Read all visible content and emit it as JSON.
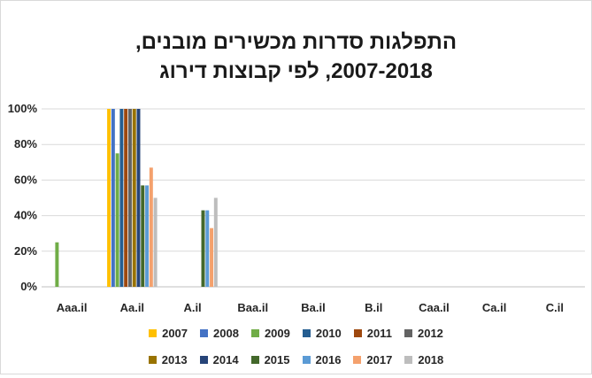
{
  "chart_data": {
    "type": "bar",
    "title_line1": "התפלגות סדרות מכשירים מובנים,",
    "title_line2": "2007-2018, לפי קבוצות דירוג",
    "categories": [
      "Aaa.il",
      "Aa.il",
      "A.il",
      "Baa.il",
      "Ba.il",
      "B.il",
      "Caa.il",
      "Ca.il",
      "C.il"
    ],
    "yticks": [
      "0%",
      "20%",
      "40%",
      "60%",
      "80%",
      "100%"
    ],
    "ylim": [
      0,
      1
    ],
    "grid": true,
    "legend_position": "bottom",
    "series": [
      {
        "name": "2007",
        "color": "#FFC000",
        "values": [
          0,
          1.0,
          0,
          0,
          0,
          0,
          0,
          0,
          0
        ]
      },
      {
        "name": "2008",
        "color": "#4472C4",
        "values": [
          0,
          1.0,
          0,
          0,
          0,
          0,
          0,
          0,
          0
        ]
      },
      {
        "name": "2009",
        "color": "#70AD47",
        "values": [
          0.25,
          0.75,
          0,
          0,
          0,
          0,
          0,
          0,
          0
        ]
      },
      {
        "name": "2010",
        "color": "#255E91",
        "values": [
          0,
          1.0,
          0,
          0,
          0,
          0,
          0,
          0,
          0
        ]
      },
      {
        "name": "2011",
        "color": "#9E480E",
        "values": [
          0,
          1.0,
          0,
          0,
          0,
          0,
          0,
          0,
          0
        ]
      },
      {
        "name": "2012",
        "color": "#636363",
        "values": [
          0,
          1.0,
          0,
          0,
          0,
          0,
          0,
          0,
          0
        ]
      },
      {
        "name": "2013",
        "color": "#997300",
        "values": [
          0,
          1.0,
          0,
          0,
          0,
          0,
          0,
          0,
          0
        ]
      },
      {
        "name": "2014",
        "color": "#264478",
        "values": [
          0,
          1.0,
          0,
          0,
          0,
          0,
          0,
          0,
          0
        ]
      },
      {
        "name": "2015",
        "color": "#43682B",
        "values": [
          0,
          0.57,
          0.43,
          0,
          0,
          0,
          0,
          0,
          0
        ]
      },
      {
        "name": "2016",
        "color": "#5B9BD5",
        "values": [
          0,
          0.57,
          0.43,
          0,
          0,
          0,
          0,
          0,
          0
        ]
      },
      {
        "name": "2017",
        "color": "#F4A16D",
        "values": [
          0,
          0.67,
          0.33,
          0,
          0,
          0,
          0,
          0,
          0
        ]
      },
      {
        "name": "2018",
        "color": "#BDBDBD",
        "values": [
          0,
          0.5,
          0.5,
          0,
          0,
          0,
          0,
          0,
          0
        ]
      }
    ]
  }
}
